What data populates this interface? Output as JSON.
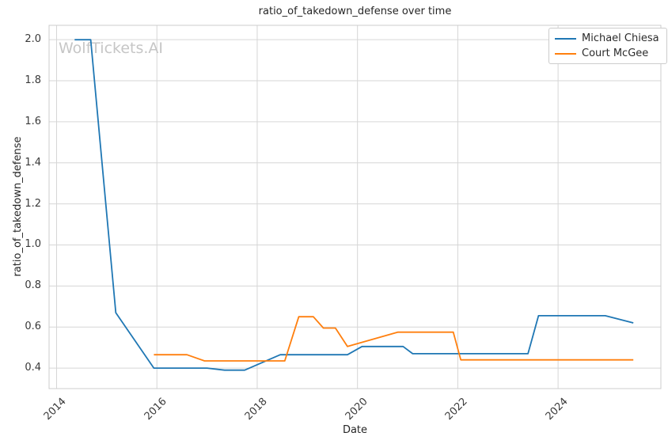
{
  "figure": {
    "title": "ratio_of_takedown_defense over time",
    "xlabel": "Date",
    "ylabel": "ratio_of_takedown_defense",
    "watermark": "WolfTickets.AI",
    "colors": {
      "grid": "#d6d6d6",
      "border": "#cccccc",
      "watermark": "#c6c6c6",
      "text": "#262626",
      "tick_text": "#3a3a3a",
      "background": "#ffffff",
      "series_blue": "#1f77b4",
      "series_orange": "#ff7f0e"
    }
  },
  "chart_data": {
    "type": "line",
    "title": "ratio_of_takedown_defense over time",
    "xlabel": "Date",
    "ylabel": "ratio_of_takedown_defense",
    "grid": true,
    "legend_position": "upper right",
    "xlim": [
      2013.85,
      2026.05
    ],
    "ylim": [
      0.3,
      2.07
    ],
    "x_ticks": [
      2014,
      2016,
      2018,
      2020,
      2022,
      2024
    ],
    "x_tick_labels": [
      "2014",
      "2016",
      "2018",
      "2020",
      "2022",
      "2024"
    ],
    "y_ticks": [
      0.4,
      0.6,
      0.8,
      1.0,
      1.2,
      1.4,
      1.6,
      1.8,
      2.0
    ],
    "y_tick_labels": [
      "0.4",
      "0.6",
      "0.8",
      "1.0",
      "1.2",
      "1.4",
      "1.6",
      "1.8",
      "2.0"
    ],
    "series": [
      {
        "name": "Michael Chiesa",
        "color": "#1f77b4",
        "points": [
          [
            2014.36,
            2.0
          ],
          [
            2014.68,
            2.0
          ],
          [
            2015.18,
            0.67
          ],
          [
            2015.94,
            0.4
          ],
          [
            2017.0,
            0.4
          ],
          [
            2017.35,
            0.39
          ],
          [
            2017.75,
            0.39
          ],
          [
            2018.46,
            0.465
          ],
          [
            2019.8,
            0.465
          ],
          [
            2020.09,
            0.505
          ],
          [
            2020.91,
            0.505
          ],
          [
            2021.1,
            0.47
          ],
          [
            2023.4,
            0.47
          ],
          [
            2023.61,
            0.655
          ],
          [
            2024.94,
            0.655
          ],
          [
            2025.5,
            0.62
          ]
        ]
      },
      {
        "name": "Court McGee",
        "color": "#ff7f0e",
        "points": [
          [
            2015.94,
            0.465
          ],
          [
            2016.6,
            0.465
          ],
          [
            2016.95,
            0.435
          ],
          [
            2018.55,
            0.435
          ],
          [
            2018.83,
            0.65
          ],
          [
            2019.12,
            0.65
          ],
          [
            2019.32,
            0.595
          ],
          [
            2019.56,
            0.595
          ],
          [
            2019.8,
            0.505
          ],
          [
            2020.8,
            0.575
          ],
          [
            2021.91,
            0.575
          ],
          [
            2022.06,
            0.44
          ],
          [
            2025.5,
            0.44
          ]
        ]
      }
    ]
  }
}
